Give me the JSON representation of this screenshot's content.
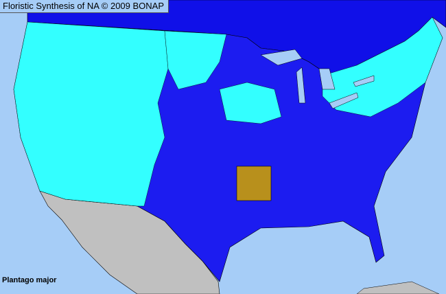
{
  "title": "Floristic Synthesis of NA © 2009 BONAP",
  "species": "Plantago major",
  "colors": {
    "water": "#a6cdf7",
    "canada": "#1010e8",
    "mexico": "#c0c0c0",
    "county_present": "#1c1cf0",
    "county_present_alt": "#33ffff",
    "state_highlight": "#b8901c"
  }
}
